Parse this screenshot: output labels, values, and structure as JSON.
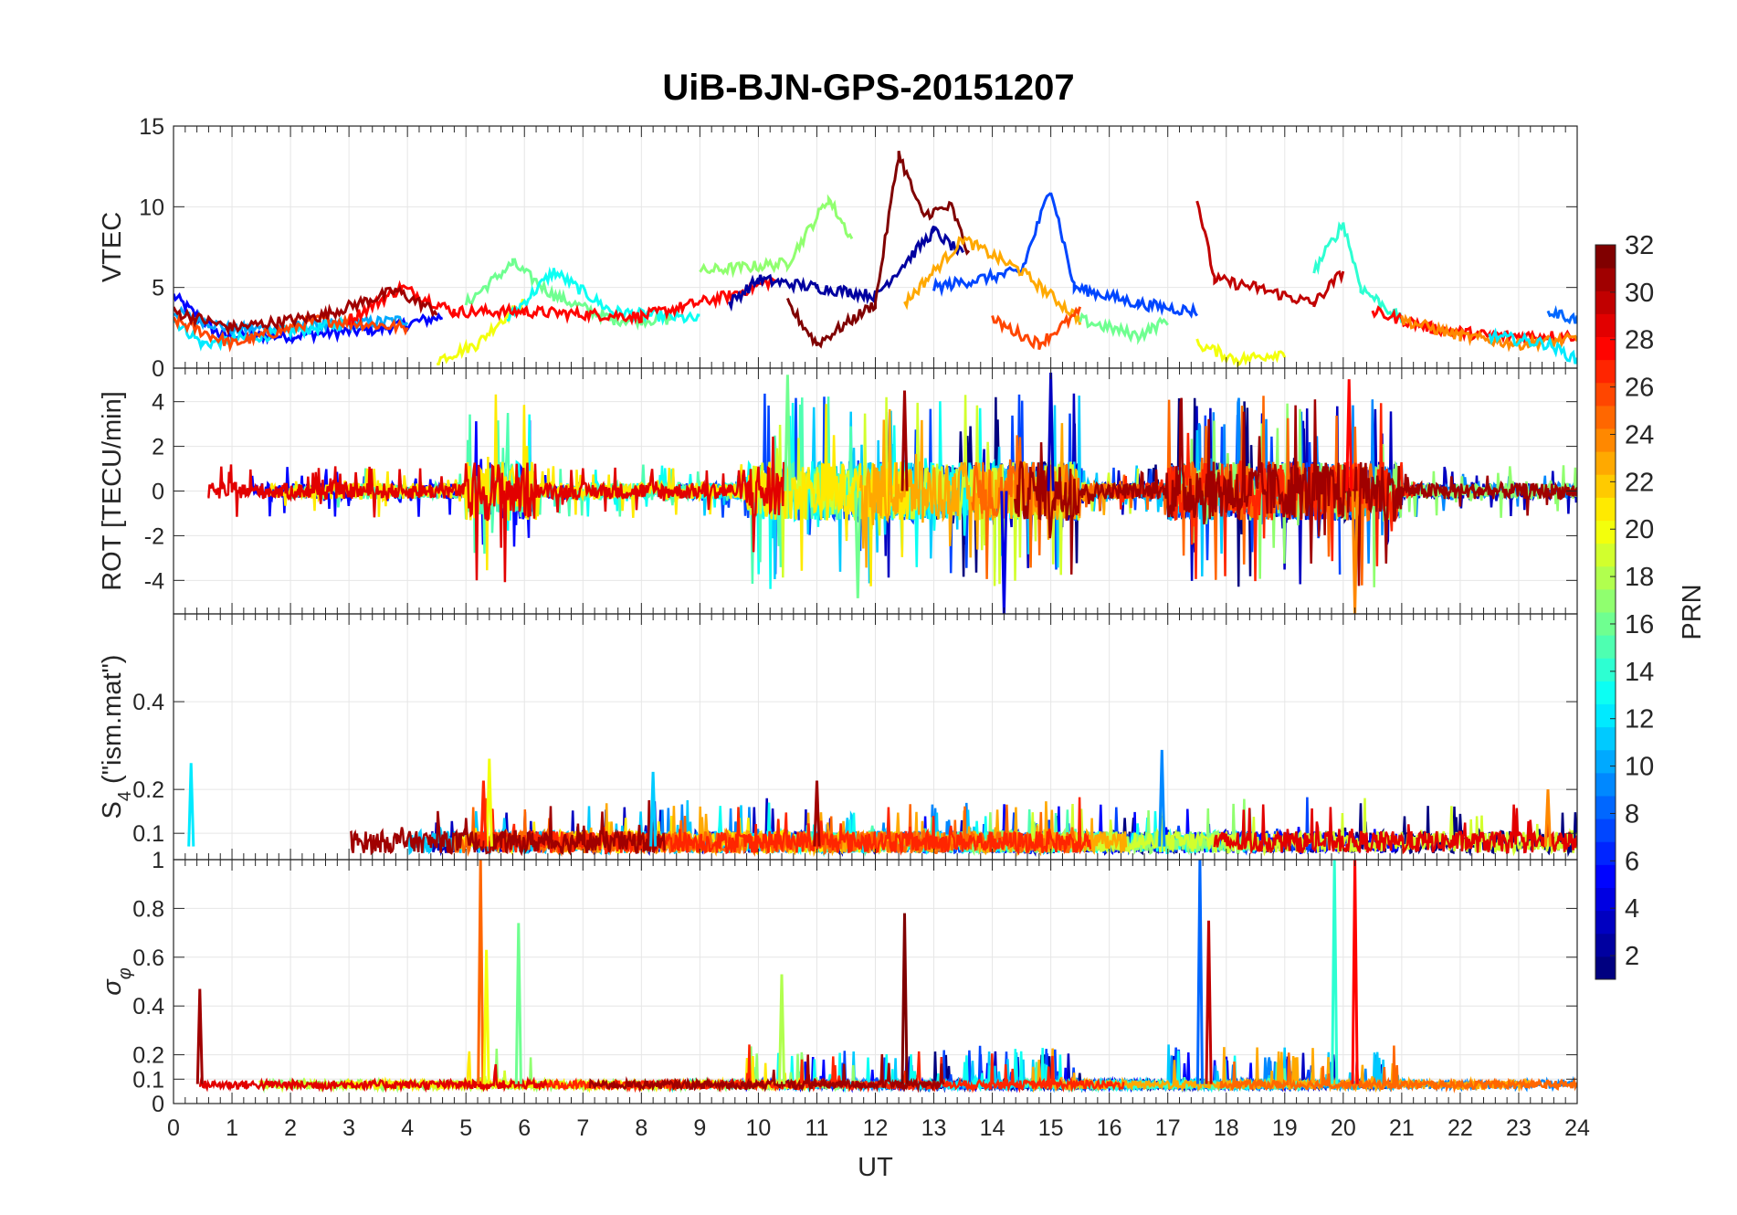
{
  "figure_title": "UiB-BJN-GPS-20151207",
  "x_axis": {
    "label": "UT",
    "ticks": [
      0,
      1,
      2,
      3,
      4,
      5,
      6,
      7,
      8,
      9,
      10,
      11,
      12,
      13,
      14,
      15,
      16,
      17,
      18,
      19,
      20,
      21,
      22,
      23,
      24
    ]
  },
  "colorbar": {
    "label": "PRN",
    "ticks": [
      2,
      4,
      6,
      8,
      10,
      12,
      14,
      16,
      18,
      20,
      22,
      24,
      26,
      28,
      30,
      32
    ],
    "range": [
      1,
      32
    ],
    "colormap": "jet"
  },
  "chart_data": [
    {
      "type": "line",
      "ylabel": "VTEC",
      "xlim": [
        0,
        24
      ],
      "ylim": [
        0,
        15
      ],
      "yticks": [
        0,
        5,
        10,
        15
      ],
      "grid": true,
      "note_series": "one line per GPS PRN, colored by PRN on the colorbar",
      "series": [
        {
          "prn": 5,
          "points": [
            [
              0,
              4.5
            ],
            [
              0.8,
              2.0
            ],
            [
              2,
              2.0
            ],
            [
              3.5,
              2.4
            ],
            [
              4.6,
              3.2
            ]
          ]
        },
        {
          "prn": 10,
          "points": [
            [
              0,
              3.5
            ],
            [
              1,
              2.4
            ],
            [
              2.5,
              2.6
            ],
            [
              4,
              3.0
            ]
          ]
        },
        {
          "prn": 12,
          "points": [
            [
              0,
              3.0
            ],
            [
              0.5,
              1.5
            ],
            [
              1.5,
              2.0
            ],
            [
              3,
              2.8
            ]
          ]
        },
        {
          "prn": 20,
          "points": [
            [
              4.5,
              0.5
            ],
            [
              5.2,
              1.5
            ],
            [
              5.6,
              3.0
            ],
            [
              6,
              4.0
            ]
          ]
        },
        {
          "prn": 16,
          "points": [
            [
              5,
              4.0
            ],
            [
              5.8,
              6.5
            ],
            [
              6.5,
              4.5
            ],
            [
              7.5,
              3.0
            ],
            [
              8.5,
              3.0
            ]
          ]
        },
        {
          "prn": 13,
          "points": [
            [
              5.7,
              3.0
            ],
            [
              6.5,
              6.0
            ],
            [
              7.5,
              3.5
            ],
            [
              9,
              3.0
            ]
          ]
        },
        {
          "prn": 26,
          "points": [
            [
              0,
              3.0
            ],
            [
              1,
              1.5
            ],
            [
              2.5,
              3.0
            ],
            [
              4,
              2.5
            ]
          ]
        },
        {
          "prn": 28,
          "points": [
            [
              3,
              3.0
            ],
            [
              3.9,
              5.0
            ],
            [
              4.8,
              3.5
            ],
            [
              6,
              3.5
            ],
            [
              8,
              3.2
            ],
            [
              9.5,
              4.5
            ],
            [
              10.3,
              5.5
            ]
          ]
        },
        {
          "prn": 31,
          "points": [
            [
              0,
              3.5
            ],
            [
              1,
              2.5
            ],
            [
              2.5,
              3.2
            ],
            [
              3.8,
              4.8
            ],
            [
              4.5,
              3.5
            ]
          ]
        },
        {
          "prn": 17,
          "points": [
            [
              9,
              6.0
            ],
            [
              10.5,
              6.5
            ],
            [
              11.2,
              10.5
            ],
            [
              11.6,
              8.0
            ]
          ]
        },
        {
          "prn": 2,
          "points": [
            [
              9.5,
              4.0
            ],
            [
              10,
              5.5
            ],
            [
              11,
              5.0
            ],
            [
              12,
              4.5
            ],
            [
              13,
              8.5
            ],
            [
              13.5,
              7.0
            ]
          ]
        },
        {
          "prn": 32,
          "points": [
            [
              10.5,
              4.0
            ],
            [
              11,
              1.5
            ],
            [
              12,
              4.0
            ],
            [
              12.4,
              13.3
            ],
            [
              12.8,
              9.5
            ],
            [
              13.3,
              10.0
            ],
            [
              13.6,
              7.0
            ]
          ]
        },
        {
          "prn": 7,
          "points": [
            [
              13,
              5.0
            ],
            [
              14.5,
              6.0
            ],
            [
              15,
              11.2
            ],
            [
              15.4,
              5.0
            ],
            [
              16.5,
              4.0
            ],
            [
              17.5,
              3.5
            ]
          ]
        },
        {
          "prn": 23,
          "points": [
            [
              12.5,
              4.0
            ],
            [
              13.5,
              8.0
            ],
            [
              14.5,
              6.0
            ],
            [
              15.5,
              3.0
            ]
          ]
        },
        {
          "prn": 26,
          "points": [
            [
              14,
              3.0
            ],
            [
              14.8,
              1.5
            ],
            [
              15.5,
              3.5
            ]
          ]
        },
        {
          "prn": 16,
          "points": [
            [
              15.5,
              3.0
            ],
            [
              16.5,
              2.0
            ],
            [
              17,
              3.0
            ]
          ]
        },
        {
          "prn": 20,
          "points": [
            [
              17.5,
              1.5
            ],
            [
              18.2,
              0.5
            ],
            [
              19,
              1.0
            ]
          ]
        },
        {
          "prn": 30,
          "points": [
            [
              17.5,
              10.5
            ],
            [
              17.8,
              5.5
            ],
            [
              18.5,
              5.0
            ],
            [
              19.5,
              4.0
            ],
            [
              20,
              6.0
            ]
          ]
        },
        {
          "prn": 14,
          "points": [
            [
              19.5,
              6.0
            ],
            [
              20,
              9.0
            ],
            [
              20.3,
              5.0
            ],
            [
              21,
              3.0
            ]
          ]
        },
        {
          "prn": 28,
          "points": [
            [
              20.5,
              3.5
            ],
            [
              21.5,
              2.5
            ],
            [
              22.5,
              2.0
            ],
            [
              24,
              2.0
            ]
          ]
        },
        {
          "prn": 24,
          "points": [
            [
              21,
              3.0
            ],
            [
              22,
              2.0
            ],
            [
              23,
              1.5
            ],
            [
              24,
              1.8
            ]
          ]
        },
        {
          "prn": 12,
          "points": [
            [
              22.5,
              2.0
            ],
            [
              23.5,
              1.5
            ],
            [
              24,
              0.5
            ]
          ]
        },
        {
          "prn": 8,
          "points": [
            [
              23.5,
              3.5
            ],
            [
              24,
              3.0
            ]
          ]
        }
      ]
    },
    {
      "type": "line",
      "ylabel": "ROT [TECU/min]",
      "xlim": [
        0,
        24
      ],
      "ylim": [
        -5.5,
        5.5
      ],
      "yticks": [
        -4,
        -2,
        0,
        2,
        4
      ],
      "grid": true,
      "note_series": "noisy rate-of-TEC traces per PRN fluctuating around 0; largest excursions ~ +/-5 near 10.5, 12-14, 15 and 20 UT",
      "peaks": [
        {
          "prn": 16,
          "x": 10.5,
          "y": 5.2
        },
        {
          "prn": 3,
          "x": 15.0,
          "y": 5.3
        },
        {
          "prn": 31,
          "x": 12.5,
          "y": 4.5
        },
        {
          "prn": 4,
          "x": 14.2,
          "y": -5.5
        },
        {
          "prn": 24,
          "x": 20.2,
          "y": -5.5
        },
        {
          "prn": 28,
          "x": 20.1,
          "y": 5.0
        },
        {
          "prn": 16,
          "x": 11.7,
          "y": -4.8
        }
      ]
    },
    {
      "type": "line",
      "ylabel": "S_4 (\"ism.mat\")",
      "xlim": [
        0,
        24
      ],
      "ylim": [
        0.04,
        0.6
      ],
      "yticks": [
        0.1,
        0.2,
        0.4
      ],
      "grid": true,
      "note_series": "amplitude scintillation index per PRN, mostly 0.05-0.15",
      "peaks": [
        {
          "prn": 12,
          "x": 0.3,
          "y": 0.26
        },
        {
          "prn": 20,
          "x": 5.4,
          "y": 0.27
        },
        {
          "prn": 27,
          "x": 5.3,
          "y": 0.22
        },
        {
          "prn": 11,
          "x": 8.2,
          "y": 0.24
        },
        {
          "prn": 31,
          "x": 11.0,
          "y": 0.22
        },
        {
          "prn": 9,
          "x": 16.9,
          "y": 0.29
        },
        {
          "prn": 24,
          "x": 23.5,
          "y": 0.2
        }
      ]
    },
    {
      "type": "line",
      "ylabel": "σ_φ",
      "xlim": [
        0,
        24
      ],
      "ylim": [
        0,
        1
      ],
      "yticks": [
        0,
        0.1,
        0.2,
        0.4,
        0.6,
        0.8,
        1
      ],
      "grid": true,
      "note_series": "phase scintillation index per PRN, baseline ~0.05-0.1 with spikes",
      "peaks": [
        {
          "prn": 31,
          "x": 0.45,
          "y": 0.47
        },
        {
          "prn": 25,
          "x": 5.25,
          "y": 1.0
        },
        {
          "prn": 20,
          "x": 5.35,
          "y": 0.63
        },
        {
          "prn": 16,
          "x": 5.9,
          "y": 0.74
        },
        {
          "prn": 18,
          "x": 10.4,
          "y": 0.53
        },
        {
          "prn": 32,
          "x": 12.5,
          "y": 0.78
        },
        {
          "prn": 8,
          "x": 17.55,
          "y": 1.0
        },
        {
          "prn": 30,
          "x": 17.7,
          "y": 0.75
        },
        {
          "prn": 14,
          "x": 19.85,
          "y": 1.0
        },
        {
          "prn": 28,
          "x": 20.2,
          "y": 1.0
        }
      ]
    }
  ]
}
